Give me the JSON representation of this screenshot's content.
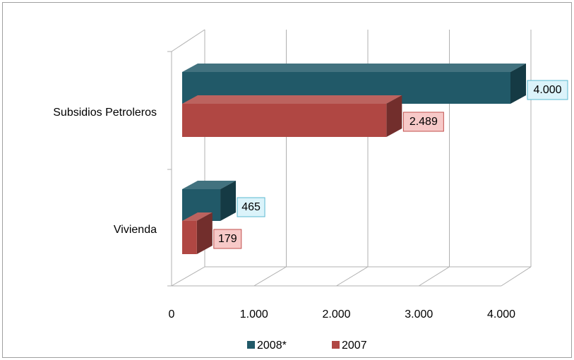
{
  "chart_data": {
    "type": "bar3d_horizontal",
    "categories": [
      "Subsidios Petroleros",
      "Vivienda"
    ],
    "series": [
      {
        "name": "2008*",
        "color": "#215968",
        "values": [
          4000,
          465
        ],
        "value_labels": [
          "4.000",
          "465"
        ]
      },
      {
        "name": "2007",
        "color": "#B04743",
        "values": [
          2489,
          179
        ],
        "value_labels": [
          "2.489",
          "179"
        ]
      }
    ],
    "xlim": [
      0,
      4000
    ],
    "xticks": [
      0,
      {
        "value": 1000,
        "label": "1.000"
      },
      {
        "value": 2000,
        "label": "2.000"
      },
      {
        "value": 3000,
        "label": "3.000"
      },
      {
        "value": 4000,
        "label": "4.000"
      }
    ],
    "grid": true,
    "legend": "bottom"
  }
}
